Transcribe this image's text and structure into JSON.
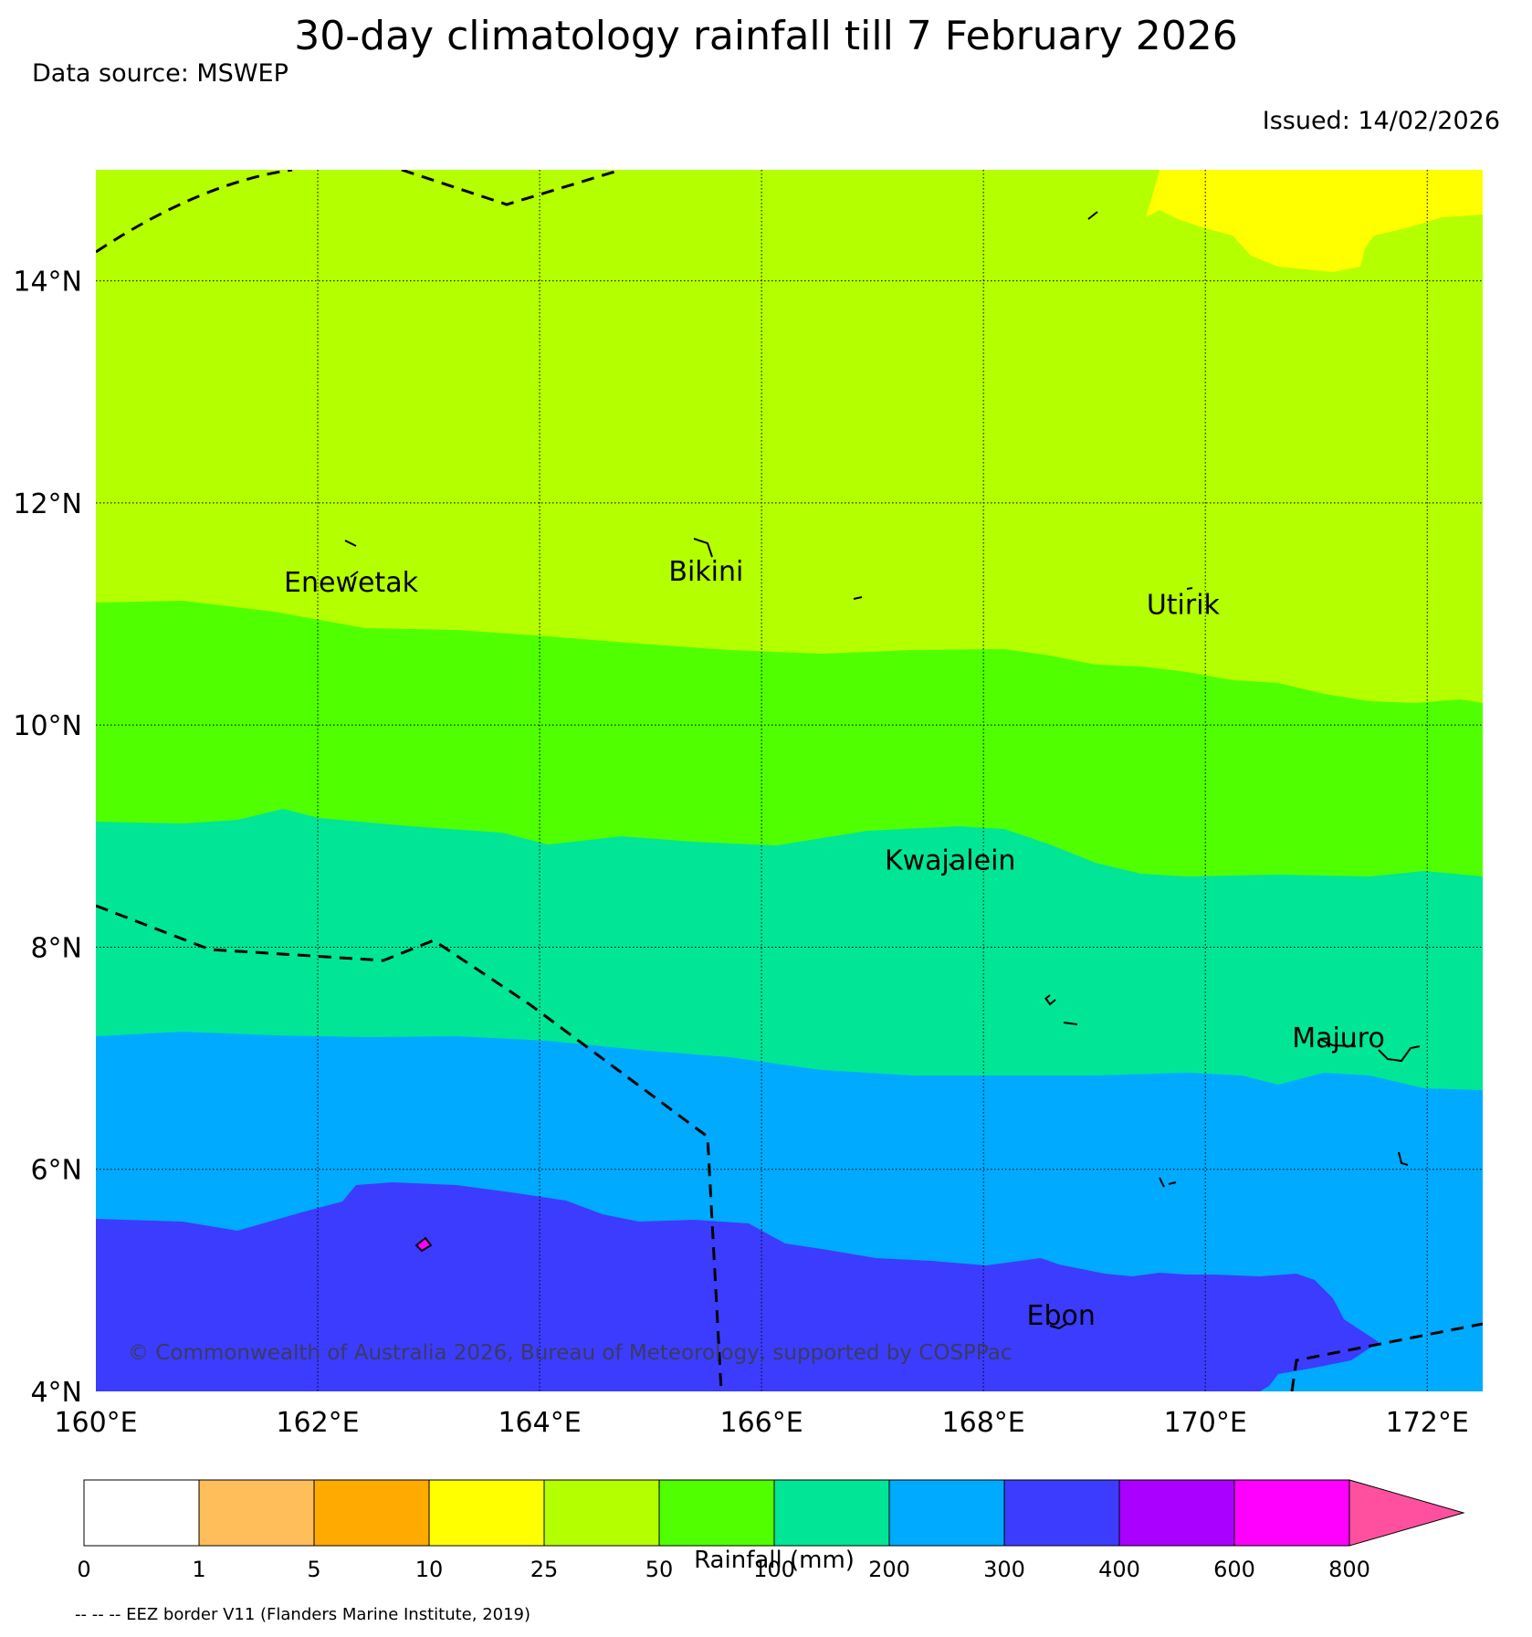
{
  "title": "30-day climatology rainfall till 7 February 2026",
  "data_source": "Data source: MSWEP",
  "issued": "Issued: 14/02/2026",
  "map": {
    "lon_range": [
      160,
      172.5
    ],
    "lat_range": [
      4,
      15
    ],
    "lon_ticks": [
      "160°E",
      "162°E",
      "164°E",
      "166°E",
      "168°E",
      "170°E",
      "172°E"
    ],
    "lat_ticks": [
      "4°N",
      "6°N",
      "8°N",
      "10°N",
      "12°N",
      "14°N"
    ],
    "grid": "dotted",
    "places": [
      {
        "name": "Enewetak",
        "lon": 162.3,
        "lat": 11.2
      },
      {
        "name": "Bikini",
        "lon": 165.5,
        "lat": 11.3
      },
      {
        "name": "Utirik",
        "lon": 169.8,
        "lat": 11.0
      },
      {
        "name": "Kwajalein",
        "lon": 167.7,
        "lat": 8.7
      },
      {
        "name": "Majuro",
        "lon": 171.2,
        "lat": 7.1
      },
      {
        "name": "Ebon",
        "lon": 168.7,
        "lat": 4.6
      }
    ],
    "copyright": "© Commonwealth of Australia 2026, Bureau of Meteorology, supported by COSPPac"
  },
  "colorbar": {
    "label": "Rainfall (mm)",
    "ticks": [
      "0",
      "1",
      "5",
      "10",
      "25",
      "50",
      "100",
      "200",
      "300",
      "400",
      "600",
      "800"
    ],
    "colors": [
      "#ffffff",
      "#ffbe5a",
      "#ffaa00",
      "#ffff00",
      "#b4ff00",
      "#50ff00",
      "#00e696",
      "#00aaff",
      "#3c3cff",
      "#aa00ff",
      "#ff00ff",
      "#ff50a0"
    ],
    "extend": "max"
  },
  "footnote": "-- -- -- EEZ border V11 (Flanders Marine Institute, 2019)"
}
